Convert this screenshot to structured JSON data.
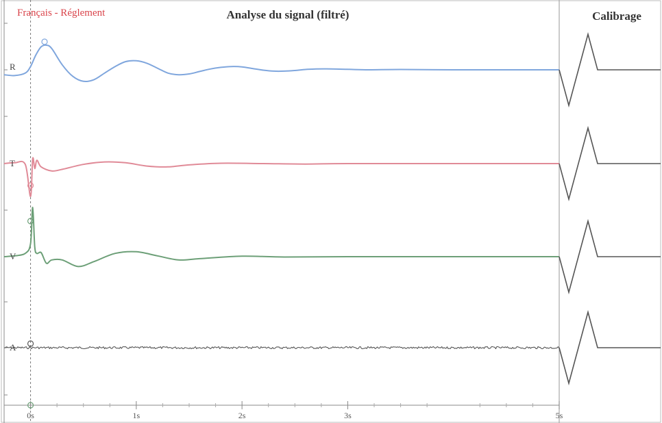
{
  "header": {
    "subtitle": "Français - Réglement",
    "title": "Analyse du signal (filtré)",
    "calibration_title": "Calibrage"
  },
  "colors": {
    "R": "#7fa6dd",
    "T": "#e08a97",
    "V": "#6c9f77",
    "A": "#555555",
    "calibration": "#555555",
    "title": "#333333",
    "subtitle": "#d9434a"
  },
  "chart_data": {
    "type": "line",
    "title": "Analyse du signal (filtré)",
    "xlabel": "",
    "ylabel": "",
    "xlim": [
      -0.25,
      5
    ],
    "x_ticks": [
      {
        "value": 0,
        "label": "0s"
      },
      {
        "value": 1,
        "label": "1s"
      },
      {
        "value": 2,
        "label": "2s"
      },
      {
        "value": 3,
        "label": "3s"
      },
      {
        "value": 5,
        "label": "5s"
      }
    ],
    "event_marker_x": 0,
    "series": [
      {
        "name": "R",
        "x": [
          -0.25,
          -0.15,
          -0.05,
          0.0,
          0.05,
          0.1,
          0.15,
          0.2,
          0.3,
          0.4,
          0.5,
          0.6,
          0.7,
          0.8,
          0.9,
          1.0,
          1.1,
          1.2,
          1.3,
          1.4,
          1.5,
          1.6,
          1.7,
          1.8,
          1.9,
          2.0,
          2.1,
          2.2,
          2.3,
          2.4,
          2.5,
          2.6,
          2.7,
          2.8,
          3.0,
          3.2,
          3.5,
          4.0,
          4.5,
          5.0
        ],
        "y": [
          -0.3,
          -0.35,
          -0.2,
          0.2,
          0.9,
          1.4,
          1.5,
          1.3,
          0.3,
          -0.4,
          -0.7,
          -0.6,
          -0.2,
          0.2,
          0.5,
          0.55,
          0.4,
          0.1,
          -0.2,
          -0.3,
          -0.25,
          -0.1,
          0.05,
          0.15,
          0.2,
          0.18,
          0.08,
          -0.02,
          -0.08,
          -0.08,
          -0.04,
          0.02,
          0.05,
          0.06,
          0.03,
          0.0,
          0.02,
          0.0,
          0.0,
          0.0
        ]
      },
      {
        "name": "T",
        "x": [
          -0.25,
          -0.15,
          -0.05,
          0.0,
          0.02,
          0.04,
          0.06,
          0.1,
          0.2,
          0.3,
          0.5,
          0.7,
          0.9,
          1.1,
          1.3,
          1.5,
          1.8,
          2.2,
          2.6,
          3.0,
          4.0,
          5.0
        ],
        "y": [
          0.0,
          0.05,
          -0.05,
          -2.0,
          0.3,
          -0.3,
          0.2,
          -0.2,
          -0.45,
          -0.35,
          -0.05,
          0.1,
          0.05,
          -0.15,
          -0.2,
          -0.08,
          0.02,
          0.0,
          -0.03,
          0.0,
          0.0,
          0.0
        ]
      },
      {
        "name": "V",
        "x": [
          -0.25,
          -0.15,
          -0.05,
          0.0,
          0.02,
          0.04,
          0.06,
          0.1,
          0.15,
          0.2,
          0.3,
          0.45,
          0.6,
          0.8,
          1.0,
          1.2,
          1.4,
          1.6,
          2.0,
          2.4,
          3.0,
          4.0,
          5.0
        ],
        "y": [
          0.0,
          0.05,
          0.2,
          0.8,
          3.0,
          0.6,
          0.2,
          0.25,
          -0.4,
          -0.2,
          -0.2,
          -0.6,
          -0.3,
          0.2,
          0.3,
          0.05,
          -0.2,
          -0.12,
          0.03,
          -0.02,
          0.0,
          0.0,
          0.0
        ]
      },
      {
        "name": "A",
        "x": [
          -0.25,
          0.0,
          5.0
        ],
        "y": [
          0.0,
          0.05,
          0.0
        ]
      }
    ],
    "calibration_pulse_amplitude": 1,
    "grid": false,
    "legend": "none"
  }
}
